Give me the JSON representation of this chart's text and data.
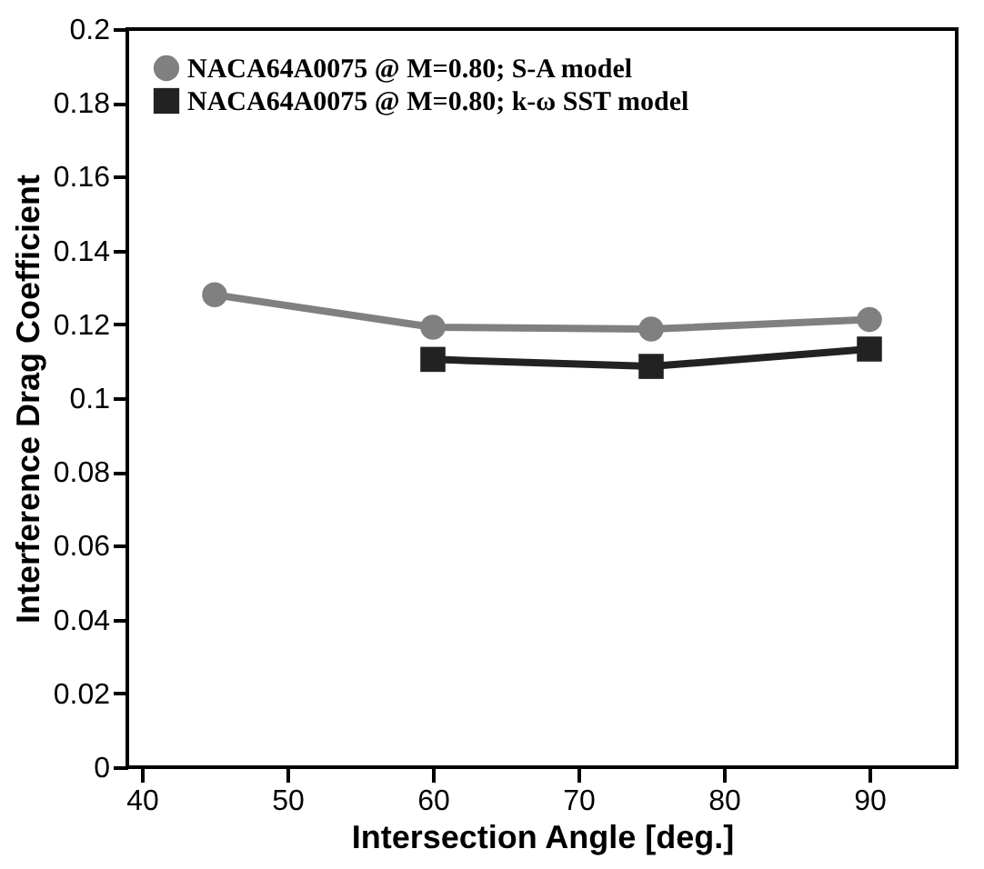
{
  "chart_data": {
    "type": "line",
    "xlabel": "Intersection Angle [deg.]",
    "ylabel": "Interference Drag Coefficient",
    "x": [
      45,
      60,
      75,
      90
    ],
    "series": [
      {
        "name": "NACA64A0075 @ M=0.80; S-A model",
        "color": "#808080",
        "marker": "circle",
        "values": [
          0.128,
          0.1192,
          0.1187,
          0.1213
        ]
      },
      {
        "name": "NACA64A0075 @ M=0.80; k-ω SST model",
        "color": "#222222",
        "marker": "square",
        "values": [
          null,
          0.1105,
          0.1086,
          0.1133
        ]
      }
    ],
    "xlim": [
      39,
      96
    ],
    "xticks": [
      40,
      50,
      60,
      70,
      80,
      90
    ],
    "ylim": [
      0,
      0.2
    ],
    "yticks": [
      0,
      0.02,
      0.04,
      0.06,
      0.08,
      0.1,
      0.12,
      0.14,
      0.16,
      0.18,
      0.2
    ],
    "grid": false,
    "legend": "top left",
    "line_style": "solid"
  }
}
